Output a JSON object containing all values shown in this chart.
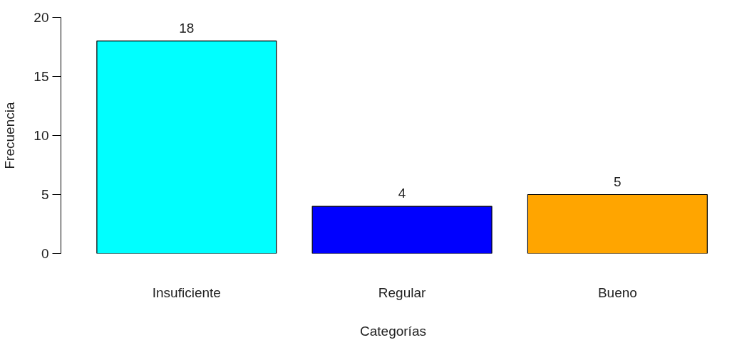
{
  "chart_data": {
    "type": "bar",
    "xlabel": "Categorías",
    "ylabel": "Frecuencia",
    "categories": [
      "Insuficiente",
      "Regular",
      "Bueno"
    ],
    "values": [
      18,
      4,
      5
    ],
    "colors": [
      "#00ffff",
      "#0000ff",
      "#ffa500"
    ],
    "ylim": [
      0,
      20
    ],
    "yticks": [
      0,
      5,
      10,
      15,
      20
    ],
    "data_labels": true,
    "grid": false
  }
}
